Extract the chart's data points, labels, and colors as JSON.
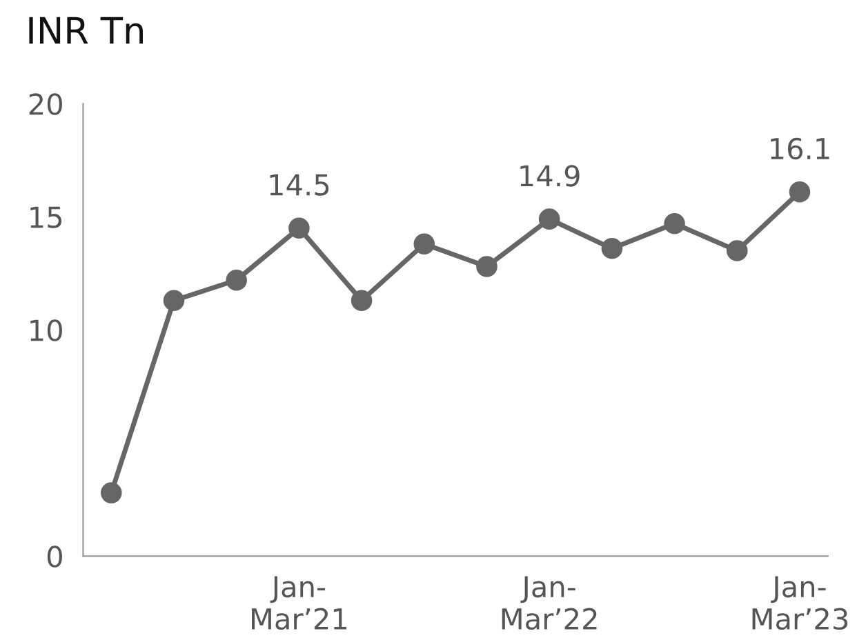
{
  "chart_data": {
    "type": "line",
    "title": "INR Tn",
    "categories": [
      null,
      null,
      null,
      "Jan-\nMar’21",
      null,
      null,
      null,
      "Jan-\nMar’22",
      null,
      null,
      null,
      "Jan-\nMar’23"
    ],
    "series": [
      {
        "color": "#666666",
        "values": [
          2.8,
          11.3,
          12.2,
          14.5,
          11.3,
          13.8,
          12.8,
          14.9,
          13.6,
          14.7,
          13.5,
          16.1
        ],
        "value_labels": [
          null,
          null,
          null,
          "14.5",
          null,
          null,
          null,
          "14.9",
          null,
          null,
          null,
          "16.1"
        ]
      }
    ],
    "ylim": [
      0,
      20
    ],
    "yticks": [
      0,
      10,
      15,
      20
    ],
    "marker": "circle",
    "line_style": "solid",
    "grid": false,
    "legend": false
  }
}
